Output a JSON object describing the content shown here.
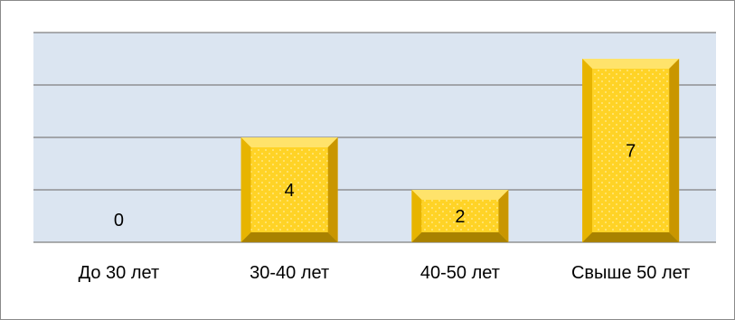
{
  "chart_data": {
    "type": "bar",
    "title": "",
    "xlabel": "",
    "ylabel": "",
    "categories": [
      "До 30 лет",
      "30-40 лет",
      "40-50 лет",
      "Свыше 50 лет"
    ],
    "values": [
      0,
      4,
      2,
      7
    ],
    "data_labels": [
      "0",
      "4",
      "2",
      "7"
    ],
    "ylim": [
      0,
      8
    ],
    "ytick_step": 2,
    "grid": true,
    "show_y_axis_labels": false,
    "legend": "none",
    "colors": {
      "plot_background": "#dbe5f1",
      "gridline": "#7f7f7f",
      "bar_face": "#ffd326",
      "bar_top": "#ffe36b",
      "bar_left": "#e7b400",
      "bar_right": "#c99600",
      "bar_bottom": "#a98200",
      "bar_dot": "#fff2b0"
    }
  }
}
